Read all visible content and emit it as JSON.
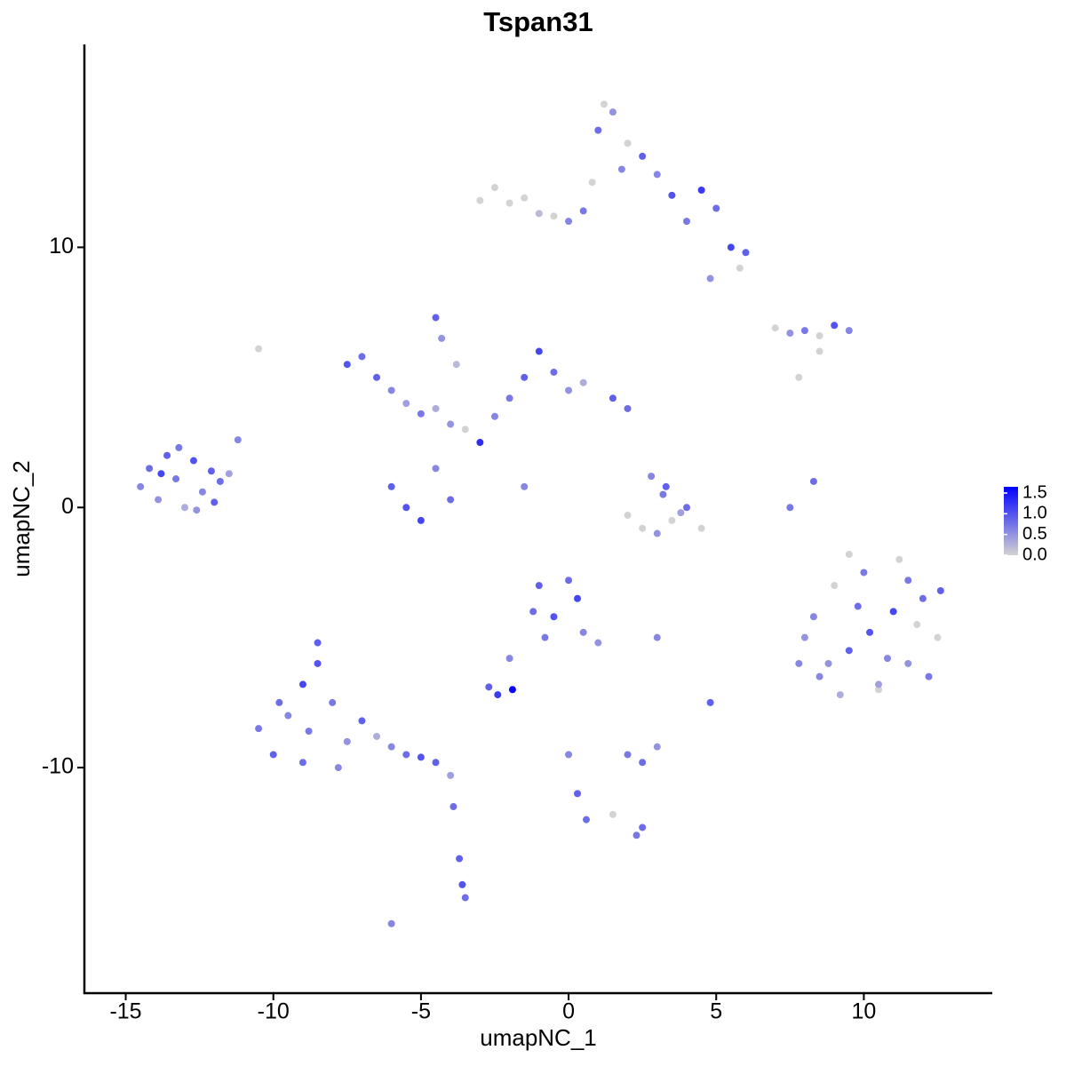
{
  "chart_data": {
    "type": "scatter",
    "title": "Tspan31",
    "xlabel": "umapNC_1",
    "ylabel": "umapNC_2",
    "xlim": [
      -16.4,
      14.35
    ],
    "ylim": [
      -18.67,
      17.8
    ],
    "xticks": [
      -15,
      -10,
      -5,
      0,
      5,
      10
    ],
    "yticks": [
      -10,
      0,
      10
    ],
    "color_low": "#d3d3d3",
    "color_high": "#0000ff",
    "color_lim": [
      0,
      1.65
    ],
    "color_ticks": [
      {
        "value": 0,
        "label": "0.0"
      },
      0.5,
      {
        "value": 1,
        "label": "1.0"
      },
      1.5
    ],
    "series": [
      {
        "x": [
          -14.5,
          -14.2,
          -13.9,
          -13.6,
          -13.3,
          -13.0,
          -12.7,
          -12.4,
          -12.1,
          -11.8,
          -11.5,
          -13.8,
          -13.2,
          -12.6,
          -12.0,
          -11.2
        ],
        "y": [
          0.8,
          1.5,
          0.3,
          2.0,
          1.1,
          0.0,
          1.8,
          0.6,
          1.4,
          1.0,
          1.3,
          1.3,
          2.3,
          -0.1,
          0.2,
          2.6
        ],
        "values": [
          0.6,
          0.8,
          0.5,
          0.9,
          0.7,
          0.3,
          1.0,
          0.6,
          0.9,
          0.8,
          0.4,
          1.1,
          0.7,
          0.5,
          0.9,
          0.6
        ]
      },
      {
        "x": [
          -3.0,
          -2.5,
          -2.0,
          -1.5,
          -1.0,
          -0.5,
          0.0,
          0.5,
          0.8,
          1.0,
          1.5,
          2.0,
          2.5,
          3.0,
          3.5,
          4.0,
          4.5,
          5.0,
          5.5,
          6.0,
          1.2,
          1.8,
          4.8,
          5.8
        ],
        "y": [
          11.8,
          12.3,
          11.7,
          11.9,
          11.3,
          11.2,
          11.0,
          11.4,
          12.5,
          14.5,
          15.2,
          14.0,
          13.5,
          12.8,
          12.0,
          11.0,
          12.2,
          11.5,
          10.0,
          9.8,
          15.5,
          13.0,
          8.8,
          9.2
        ],
        "values": [
          0,
          0,
          0,
          0,
          0.2,
          0,
          0.6,
          0.7,
          0,
          0.8,
          0.5,
          0,
          0.9,
          0.6,
          1.0,
          0.7,
          1.2,
          0.8,
          1.1,
          0.9,
          0,
          0.6,
          0.5,
          0
        ]
      },
      {
        "x": [
          -7.5,
          -7.0,
          -6.5,
          -6.0,
          -5.5,
          -5.0,
          -4.5,
          -4.0,
          -3.5,
          -3.0,
          -2.5,
          -2.0,
          -1.5,
          -1.0,
          -0.5,
          0.0,
          0.5,
          1.5,
          2.0,
          -6.0,
          -5.5,
          -5.0,
          -4.5,
          -4.0,
          -4.5,
          -4.3,
          -1.5,
          -3.8
        ],
        "y": [
          5.5,
          5.8,
          5.0,
          4.5,
          4.0,
          3.6,
          3.8,
          3.2,
          3.0,
          2.5,
          3.5,
          4.2,
          5.0,
          6.0,
          5.2,
          4.5,
          4.8,
          4.2,
          3.8,
          0.8,
          0.0,
          -0.5,
          1.5,
          0.3,
          7.3,
          6.5,
          0.8,
          5.5
        ],
        "values": [
          1.0,
          0.8,
          0.9,
          0.6,
          0.4,
          0.7,
          0.3,
          0.5,
          0,
          1.3,
          0.6,
          0.7,
          0.9,
          1.1,
          0.8,
          0.5,
          0.3,
          0.9,
          0.8,
          0.9,
          1.0,
          1.1,
          0.6,
          0.8,
          0.9,
          0.5,
          0.6,
          0.2
        ]
      },
      {
        "x": [
          8.0,
          8.5,
          9.0,
          9.5,
          10.0,
          10.5,
          11.0,
          11.5,
          12.0,
          12.5,
          8.3,
          9.2,
          10.2,
          11.2,
          12.2,
          8.8,
          9.8,
          10.8,
          11.8,
          12.6,
          9.5,
          10.5,
          11.5,
          7.8
        ],
        "y": [
          -5.0,
          -6.5,
          -3.0,
          -5.5,
          -2.5,
          -7.0,
          -4.0,
          -6.0,
          -3.5,
          -5.0,
          -4.2,
          -7.2,
          -4.8,
          -2.0,
          -6.5,
          -6.0,
          -3.8,
          -5.8,
          -4.5,
          -3.2,
          -1.8,
          -6.8,
          -2.8,
          -6.0
        ],
        "values": [
          0.5,
          0.6,
          0,
          0.9,
          0.7,
          0,
          1.1,
          0.5,
          0.8,
          0,
          0.6,
          0.3,
          1.0,
          0,
          0.7,
          0.5,
          0.8,
          0.6,
          0,
          0.9,
          0,
          0.4,
          0.7,
          0.6
        ]
      },
      {
        "x": [
          -10.5,
          -10.0,
          -9.5,
          -9.0,
          -8.5,
          -8.0,
          -7.5,
          -7.0,
          -6.5,
          -6.0,
          -5.5,
          -5.0,
          -4.5,
          -4.0,
          -9.8,
          -9.0,
          -8.5,
          -7.8,
          -8.8,
          -3.9,
          -3.7,
          -3.6,
          -3.5,
          -6.0
        ],
        "y": [
          -8.5,
          -9.5,
          -8.0,
          -9.8,
          -6.0,
          -7.5,
          -9.0,
          -8.2,
          -8.8,
          -9.2,
          -9.5,
          -9.6,
          -9.8,
          -10.3,
          -7.5,
          -6.8,
          -5.2,
          -10.0,
          -8.6,
          -11.5,
          -13.5,
          -14.5,
          -15.0,
          -16.0
        ],
        "values": [
          0.7,
          0.9,
          0.6,
          0.8,
          1.0,
          0.7,
          0.5,
          0.9,
          0.3,
          0.6,
          0.8,
          1.0,
          0.9,
          0.4,
          0.8,
          1.1,
          0.9,
          0.6,
          0.7,
          0.8,
          0.9,
          1.0,
          0.8,
          0.6
        ]
      },
      {
        "x": [
          -1.0,
          -0.5,
          0.0,
          0.5,
          1.0,
          -0.8,
          0.3,
          -1.2,
          -2.0,
          -2.7,
          -2.4,
          -1.9,
          2.0,
          2.5,
          3.0,
          0.0,
          0.3,
          0.6,
          1.5,
          2.3,
          2.5,
          3.0,
          3.2,
          4.8
        ],
        "y": [
          -3.0,
          -4.2,
          -2.8,
          -4.8,
          -5.2,
          -5.0,
          -3.5,
          -4.0,
          -5.8,
          -6.9,
          -7.2,
          -7.0,
          -9.5,
          -9.8,
          -9.2,
          -9.5,
          -11.0,
          -12.0,
          -11.8,
          -12.6,
          -12.3,
          -5.0,
          0.5,
          -7.5
        ],
        "values": [
          0.9,
          1.0,
          0.8,
          0.6,
          0.5,
          0.7,
          1.1,
          0.8,
          0.6,
          0.9,
          1.2,
          1.6,
          0.7,
          0.8,
          0.5,
          0.6,
          0.9,
          0.8,
          0,
          0.7,
          0.8,
          0.6,
          0.7,
          0.9
        ]
      },
      {
        "x": [
          2.0,
          2.5,
          3.0,
          3.5,
          4.0,
          4.5,
          2.8,
          3.3,
          3.8,
          7.0,
          7.5,
          8.0,
          8.5,
          9.0,
          9.5,
          8.5,
          7.8,
          7.5,
          8.3,
          -10.5
        ],
        "y": [
          -0.3,
          -0.8,
          -1.0,
          -0.5,
          0.0,
          -0.8,
          1.2,
          0.8,
          -0.2,
          6.9,
          6.7,
          6.8,
          6.6,
          7.0,
          6.8,
          6.0,
          5.0,
          0.0,
          1.0,
          6.1
        ],
        "values": [
          0,
          0,
          0.5,
          0,
          0.8,
          0,
          0.6,
          0.9,
          0.4,
          0,
          0.5,
          0.7,
          0,
          1.0,
          0.6,
          0,
          0,
          0.7,
          0.8,
          0
        ]
      }
    ]
  }
}
